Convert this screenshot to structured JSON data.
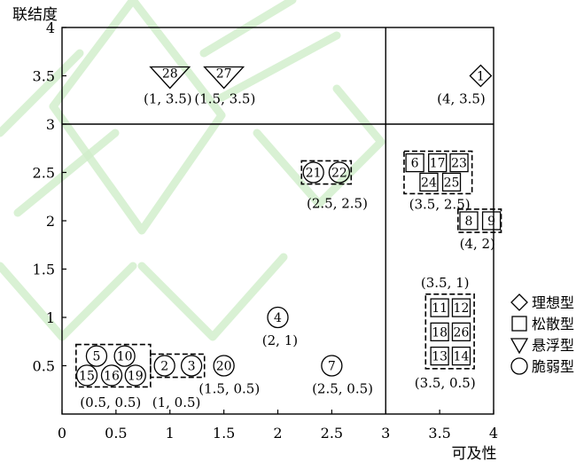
{
  "chart_data": {
    "type": "scatter",
    "xlabel": "可及性",
    "ylabel": "联结度",
    "xlim": [
      0,
      4
    ],
    "ylim": [
      0,
      4
    ],
    "x_ticks": [
      "0",
      "0.5",
      "1",
      "1.5",
      "2",
      "2.5",
      "3",
      "3.5",
      "4"
    ],
    "y_ticks": [
      "0.5",
      "1",
      "1.5",
      "2",
      "2.5",
      "3",
      "3.5",
      "4"
    ],
    "divider_lines": {
      "x": 3,
      "y": 3
    },
    "legend": [
      {
        "shape": "diamond",
        "label": "理想型"
      },
      {
        "shape": "square",
        "label": "松散型"
      },
      {
        "shape": "triangle",
        "label": "悬浮型"
      },
      {
        "shape": "circle",
        "label": "脆弱型"
      }
    ],
    "points": [
      {
        "id": "1",
        "shape": "diamond",
        "x": 3.88,
        "y": 3.5
      },
      {
        "id": "28",
        "shape": "triangle",
        "x": 1.0,
        "y": 3.5
      },
      {
        "id": "27",
        "shape": "triangle",
        "x": 1.5,
        "y": 3.5
      },
      {
        "id": "21",
        "shape": "circle",
        "x": 2.33,
        "y": 2.5
      },
      {
        "id": "22",
        "shape": "circle",
        "x": 2.57,
        "y": 2.5
      },
      {
        "id": "4",
        "shape": "circle",
        "x": 2.0,
        "y": 1.0
      },
      {
        "id": "7",
        "shape": "circle",
        "x": 2.5,
        "y": 0.5
      },
      {
        "id": "20",
        "shape": "circle",
        "x": 1.5,
        "y": 0.5
      },
      {
        "id": "2",
        "shape": "circle",
        "x": 0.95,
        "y": 0.5
      },
      {
        "id": "3",
        "shape": "circle",
        "x": 1.2,
        "y": 0.5
      },
      {
        "id": "5",
        "shape": "circle",
        "x": 0.32,
        "y": 0.6
      },
      {
        "id": "10",
        "shape": "circle",
        "x": 0.58,
        "y": 0.6
      },
      {
        "id": "15",
        "shape": "circle",
        "x": 0.23,
        "y": 0.4
      },
      {
        "id": "16",
        "shape": "circle",
        "x": 0.46,
        "y": 0.4
      },
      {
        "id": "19",
        "shape": "circle",
        "x": 0.68,
        "y": 0.4
      },
      {
        "id": "6",
        "shape": "square",
        "x": 3.27,
        "y": 2.6
      },
      {
        "id": "17",
        "shape": "square",
        "x": 3.48,
        "y": 2.6
      },
      {
        "id": "23",
        "shape": "square",
        "x": 3.68,
        "y": 2.6
      },
      {
        "id": "24",
        "shape": "square",
        "x": 3.4,
        "y": 2.4
      },
      {
        "id": "25",
        "shape": "square",
        "x": 3.61,
        "y": 2.4
      },
      {
        "id": "8",
        "shape": "square",
        "x": 3.77,
        "y": 2.0
      },
      {
        "id": "9",
        "shape": "square",
        "x": 3.98,
        "y": 2.0
      },
      {
        "id": "11",
        "shape": "square",
        "x": 3.5,
        "y": 1.1
      },
      {
        "id": "12",
        "shape": "square",
        "x": 3.7,
        "y": 1.1
      },
      {
        "id": "18",
        "shape": "square",
        "x": 3.5,
        "y": 0.85
      },
      {
        "id": "26",
        "shape": "square",
        "x": 3.7,
        "y": 0.85
      },
      {
        "id": "13",
        "shape": "square",
        "x": 3.5,
        "y": 0.6
      },
      {
        "id": "14",
        "shape": "square",
        "x": 3.7,
        "y": 0.6
      }
    ],
    "groups": [
      {
        "points": [
          "5",
          "10",
          "15",
          "16",
          "19"
        ],
        "x0": 0.13,
        "x1": 0.82,
        "y0": 0.28,
        "y1": 0.72,
        "label": "(0.5, 0.5)",
        "lx": 0.45,
        "ly": 0.12
      },
      {
        "points": [
          "2",
          "3"
        ],
        "x0": 0.82,
        "x1": 1.32,
        "y0": 0.38,
        "y1": 0.62,
        "label": "(1, 0.5)",
        "lx": 1.06,
        "ly": 0.12
      },
      {
        "points": [
          "21",
          "22"
        ],
        "x0": 2.22,
        "x1": 2.68,
        "y0": 2.38,
        "y1": 2.62,
        "label": "(2.5, 2.5)",
        "lx": 2.55,
        "ly": 2.18
      },
      {
        "points": [
          "6",
          "17",
          "23",
          "24",
          "25"
        ],
        "x0": 3.17,
        "x1": 3.8,
        "y0": 2.28,
        "y1": 2.72,
        "label": "(3.5, 2.5)",
        "lx": 3.5,
        "ly": 2.17
      },
      {
        "points": [
          "8",
          "9"
        ],
        "x0": 3.67,
        "x1": 4.07,
        "y0": 1.88,
        "y1": 2.12,
        "label": "(4, 2)",
        "lx": 3.85,
        "ly": 1.76
      },
      {
        "points": [
          "11",
          "12",
          "18",
          "26",
          "13",
          "14"
        ],
        "x0": 3.37,
        "x1": 3.82,
        "y0": 0.47,
        "y1": 1.24,
        "label": "(3.5, 0.5)",
        "lx": 3.55,
        "ly": 0.32
      }
    ],
    "labels": [
      {
        "text": "(4, 3.5)",
        "x": 3.7,
        "y": 3.26
      },
      {
        "text": "(1, 3.5)",
        "x": 0.98,
        "y": 3.26
      },
      {
        "text": "(1.5, 3.5)",
        "x": 1.51,
        "y": 3.26
      },
      {
        "text": "(3.5, 1)",
        "x": 3.55,
        "y": 1.36
      },
      {
        "text": "(2, 1)",
        "x": 2.02,
        "y": 0.76
      },
      {
        "text": "(1.5, 0.5)",
        "x": 1.55,
        "y": 0.26
      },
      {
        "text": "(2.5, 0.5)",
        "x": 2.6,
        "y": 0.26
      }
    ]
  }
}
